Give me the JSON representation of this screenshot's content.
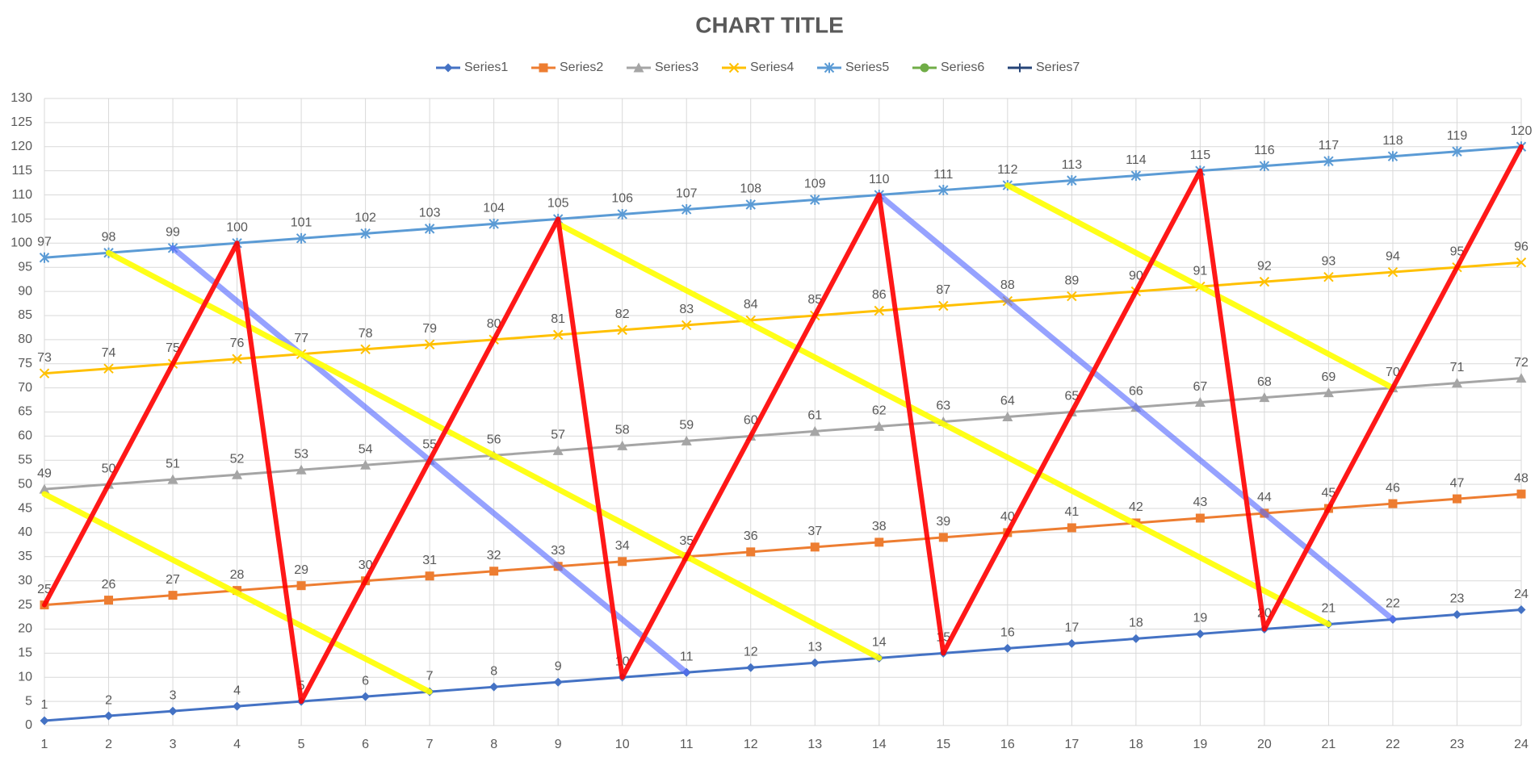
{
  "chart_data": {
    "type": "line",
    "title": "CHART TITLE",
    "x": [
      1,
      2,
      3,
      4,
      5,
      6,
      7,
      8,
      9,
      10,
      11,
      12,
      13,
      14,
      15,
      16,
      17,
      18,
      19,
      20,
      21,
      22,
      23,
      24
    ],
    "xlim": [
      1,
      24
    ],
    "xticks": [
      1,
      2,
      3,
      4,
      5,
      6,
      7,
      8,
      9,
      10,
      11,
      12,
      13,
      14,
      15,
      16,
      17,
      18,
      19,
      20,
      21,
      22,
      23,
      24
    ],
    "ylim": [
      0,
      130
    ],
    "yticks": [
      0,
      5,
      10,
      15,
      20,
      25,
      30,
      35,
      40,
      45,
      50,
      55,
      60,
      65,
      70,
      75,
      80,
      85,
      90,
      95,
      100,
      105,
      110,
      115,
      120,
      125,
      130
    ],
    "grid": true,
    "legend": "top",
    "series": [
      {
        "name": "Series1",
        "color": "#4472c4",
        "marker": "diamond",
        "values": [
          1,
          2,
          3,
          4,
          5,
          6,
          7,
          8,
          9,
          10,
          11,
          12,
          13,
          14,
          15,
          16,
          17,
          18,
          19,
          20,
          21,
          22,
          23,
          24
        ]
      },
      {
        "name": "Series2",
        "color": "#ed7d31",
        "marker": "square",
        "values": [
          25,
          26,
          27,
          28,
          29,
          30,
          31,
          32,
          33,
          34,
          35,
          36,
          37,
          38,
          39,
          40,
          41,
          42,
          43,
          44,
          45,
          46,
          47,
          48
        ]
      },
      {
        "name": "Series3",
        "color": "#a5a5a5",
        "marker": "triangle",
        "values": [
          49,
          50,
          51,
          52,
          53,
          54,
          55,
          56,
          57,
          58,
          59,
          60,
          61,
          62,
          63,
          64,
          65,
          66,
          67,
          68,
          69,
          70,
          71,
          72
        ]
      },
      {
        "name": "Series4",
        "color": "#ffc000",
        "marker": "x",
        "values": [
          73,
          74,
          75,
          76,
          77,
          78,
          79,
          80,
          81,
          82,
          83,
          84,
          85,
          86,
          87,
          88,
          89,
          90,
          91,
          92,
          93,
          94,
          95,
          96
        ]
      },
      {
        "name": "Series5",
        "color": "#5b9bd5",
        "marker": "star",
        "values": [
          97,
          98,
          99,
          100,
          101,
          102,
          103,
          104,
          105,
          106,
          107,
          108,
          109,
          110,
          111,
          112,
          113,
          114,
          115,
          116,
          117,
          118,
          119,
          120
        ]
      },
      {
        "name": "Series6",
        "color": "#70ad47",
        "marker": "circle",
        "values": [
          null,
          null,
          null,
          null,
          null,
          null,
          null,
          null,
          null,
          null,
          null,
          null,
          null,
          null,
          null,
          null,
          null,
          null,
          null,
          null,
          null,
          null,
          null,
          null
        ]
      },
      {
        "name": "Series7",
        "color": "#264478",
        "marker": "plus",
        "values": [
          null,
          null,
          null,
          null,
          null,
          null,
          null,
          null,
          null,
          null,
          null,
          null,
          null,
          null,
          null,
          null,
          null,
          null,
          null,
          null,
          null,
          null,
          null,
          null
        ]
      }
    ]
  }
}
